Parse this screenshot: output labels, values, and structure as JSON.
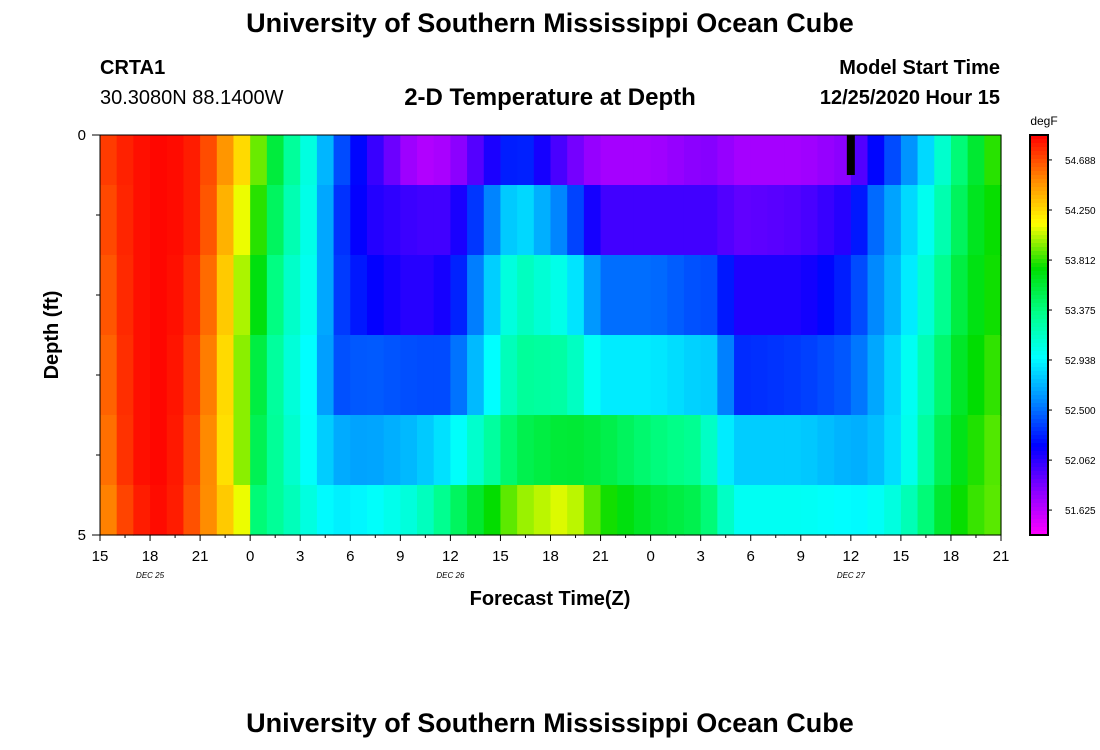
{
  "header": {
    "title_top": "University of Southern Mississippi Ocean Cube",
    "title_bottom": "University of Southern Mississippi Ocean Cube",
    "station_id": "CRTA1",
    "station_coords": "30.3080N 88.1400W",
    "start_label": "Model Start Time",
    "start_value": "12/25/2020 Hour 15"
  },
  "chart_data": {
    "type": "heatmap",
    "title": "2-D Temperature at Depth",
    "xlabel": "Forecast Time(Z)",
    "ylabel": "Depth (ft)",
    "colorbar_units": "degF",
    "x_tick_labels": [
      "15",
      "18",
      "21",
      "0",
      "3",
      "6",
      "9",
      "12",
      "15",
      "18",
      "21",
      "0",
      "3",
      "6",
      "9",
      "12",
      "15",
      "18",
      "21"
    ],
    "date_labels": [
      {
        "label": "DEC 25",
        "hours_from_start": 3
      },
      {
        "label": "DEC 26",
        "hours_from_start": 21
      },
      {
        "label": "DEC 27",
        "hours_from_start": 45
      }
    ],
    "x_range_hours_from_start": [
      0,
      54
    ],
    "y_tick_labels": [
      "0",
      "5"
    ],
    "depth_range_ft": [
      0,
      5
    ],
    "depth_levels_ft": [
      0.25,
      1.0,
      2.0,
      3.0,
      4.0,
      4.75
    ],
    "colorbar": {
      "min": 51.407,
      "max": 54.906,
      "tick_values": [
        54.688,
        54.25,
        53.812,
        53.375,
        52.938,
        52.5,
        52.062,
        51.625
      ],
      "tick_labels": [
        "54.688",
        "54.250",
        "53.812",
        "53.375",
        "52.938",
        "52.500",
        "52.062",
        "51.625"
      ],
      "colors": [
        "#ff00ff",
        "#8800ff",
        "#0000ff",
        "#0088ff",
        "#00ffff",
        "#00ff88",
        "#00dd00",
        "#ffff00",
        "#ff8800",
        "#ff0000"
      ]
    },
    "profile_key_hours": [
      0,
      2,
      4,
      6,
      8.5,
      9.5,
      11,
      13,
      14,
      16,
      19,
      21,
      25,
      28,
      30,
      33,
      36,
      37,
      38,
      42,
      45,
      46,
      48,
      50,
      51,
      52,
      54
    ],
    "temperature_degF": [
      [
        54.7,
        54.85,
        54.9,
        54.8,
        54.25,
        53.9,
        53.4,
        52.95,
        52.5,
        52.1,
        51.65,
        51.7,
        52.35,
        51.9,
        51.7,
        51.7,
        51.8,
        51.8,
        51.7,
        51.7,
        51.8,
        52.1,
        52.5,
        52.95,
        53.3,
        53.5,
        53.9
      ],
      [
        54.65,
        54.85,
        54.9,
        54.8,
        54.1,
        53.8,
        53.3,
        52.95,
        52.4,
        52.1,
        52.0,
        52.0,
        52.9,
        52.5,
        52.0,
        52.0,
        52.0,
        52.0,
        51.9,
        51.95,
        52.1,
        52.4,
        52.75,
        53.1,
        53.35,
        53.6,
        53.8
      ],
      [
        54.6,
        54.85,
        54.9,
        54.75,
        54.0,
        53.7,
        53.2,
        52.95,
        52.4,
        52.2,
        52.05,
        52.15,
        53.2,
        53.0,
        52.5,
        52.5,
        52.4,
        52.4,
        52.1,
        52.1,
        52.3,
        52.5,
        52.8,
        53.2,
        53.45,
        53.65,
        53.8
      ],
      [
        54.55,
        54.85,
        54.9,
        54.7,
        53.95,
        53.55,
        53.15,
        52.9,
        52.4,
        52.45,
        52.4,
        52.4,
        53.3,
        53.25,
        52.9,
        52.9,
        52.8,
        52.8,
        52.3,
        52.35,
        52.45,
        52.6,
        52.9,
        53.3,
        53.55,
        53.7,
        53.85
      ],
      [
        54.5,
        54.85,
        54.9,
        54.65,
        53.95,
        53.5,
        53.2,
        52.9,
        52.7,
        52.65,
        52.75,
        52.9,
        53.5,
        53.6,
        53.55,
        53.4,
        53.3,
        53.0,
        52.8,
        52.8,
        52.7,
        52.7,
        52.9,
        53.4,
        53.6,
        53.75,
        53.9
      ],
      [
        54.45,
        54.8,
        54.9,
        54.6,
        54.1,
        53.4,
        53.25,
        53.0,
        52.9,
        52.95,
        53.1,
        53.4,
        53.95,
        54.1,
        53.8,
        53.6,
        53.5,
        53.3,
        53.0,
        53.0,
        52.95,
        52.95,
        53.1,
        53.5,
        53.7,
        53.8,
        53.9
      ]
    ]
  }
}
